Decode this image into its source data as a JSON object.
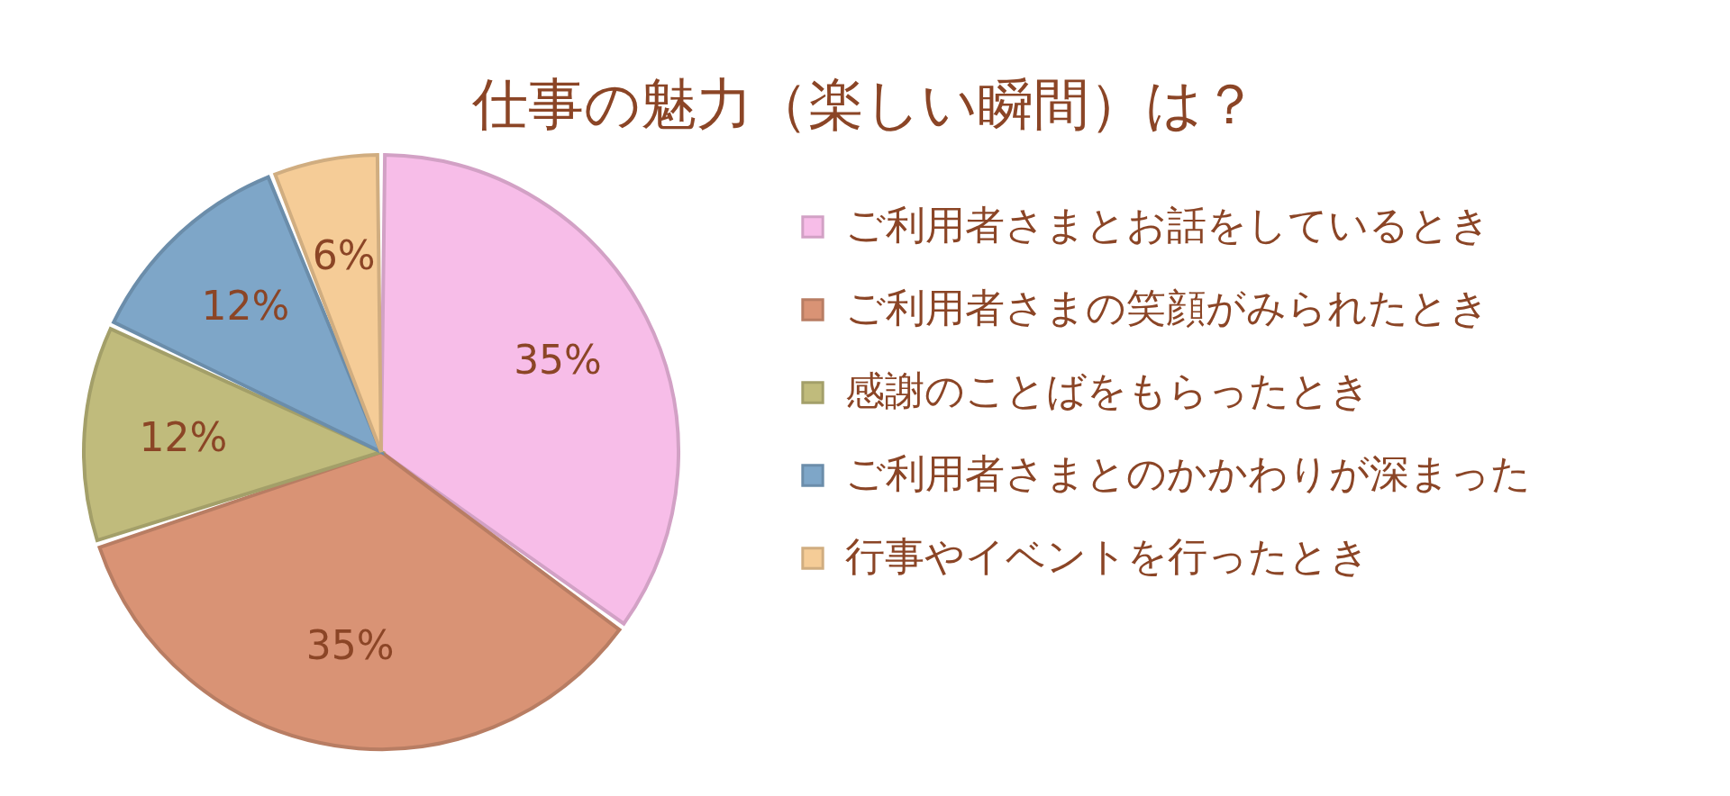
{
  "chart_data": {
    "type": "pie",
    "title": "仕事の魅力（楽しい瞬間）は？",
    "categories": [
      "ご利用者さまとお話をしているとき",
      "ご利用者さまの笑顔がみられたとき",
      "感謝のことばをもらったとき",
      "ご利用者さまとのかかわりが深まった",
      "行事やイベントを行ったとき"
    ],
    "values": [
      35,
      35,
      12,
      12,
      6
    ],
    "value_labels": [
      "35%",
      "35%",
      "12%",
      "12%",
      "6%"
    ],
    "colors": [
      "#f7bde8",
      "#d99375",
      "#c0bb7c",
      "#7ea6c8",
      "#f5cc97"
    ],
    "legend": "right"
  }
}
